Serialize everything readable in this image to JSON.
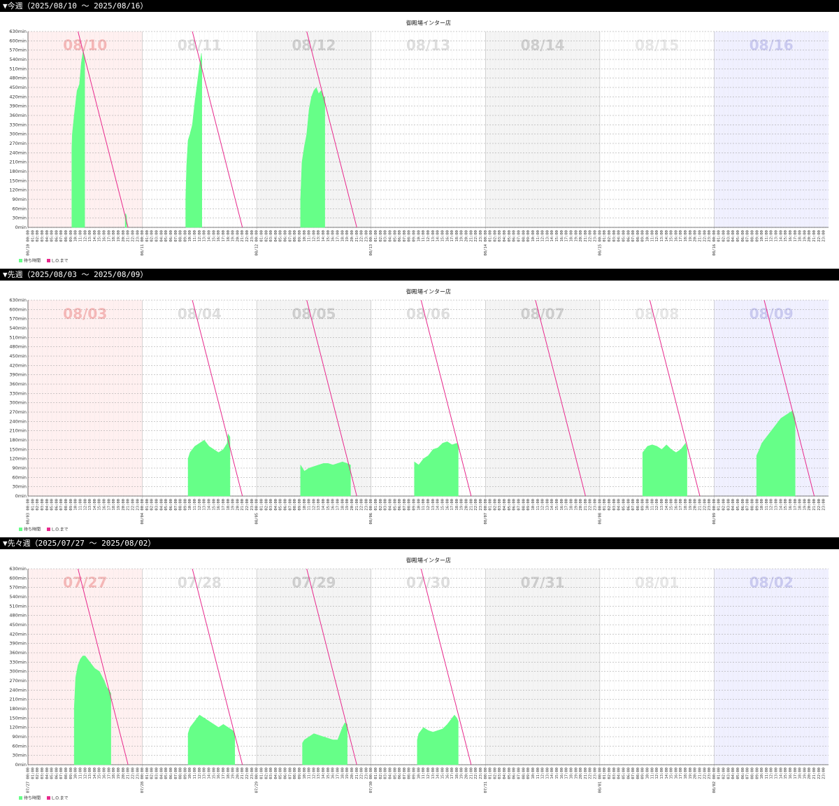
{
  "hour_ticks": [
    {
      "value": 1,
      "label": "01:00"
    },
    {
      "value": 2,
      "label": "02:00"
    },
    {
      "value": 3,
      "label": "03:00"
    },
    {
      "value": 4,
      "label": "04:00"
    },
    {
      "value": 5,
      "label": "05:00"
    },
    {
      "value": 6,
      "label": "06:00"
    },
    {
      "value": 7,
      "label": "07:00"
    },
    {
      "value": 8,
      "label": "08:00"
    },
    {
      "value": 9,
      "label": "09:00"
    },
    {
      "value": 10,
      "label": "10:00"
    },
    {
      "value": 11,
      "label": "11:00"
    },
    {
      "value": 12,
      "label": "12:00"
    },
    {
      "value": 13,
      "label": "13:00"
    },
    {
      "value": 14,
      "label": "14:00"
    },
    {
      "value": 15,
      "label": "15:00"
    },
    {
      "value": 16,
      "label": "16:00"
    },
    {
      "value": 17,
      "label": "17:00"
    },
    {
      "value": 18,
      "label": "18:00"
    },
    {
      "value": 19,
      "label": "19:00"
    },
    {
      "value": 20,
      "label": "20:00"
    },
    {
      "value": 21,
      "label": "21:00"
    },
    {
      "value": 22,
      "label": "22:00"
    },
    {
      "value": 23,
      "label": "23:00"
    }
  ],
  "chart_data": [
    {
      "type": "area",
      "heading": "▼今週（2025/08/10 〜 2025/08/16）",
      "title": "御殿場インター店",
      "xlim": [
        0,
        168
      ],
      "ylim": [
        0,
        630
      ],
      "grid": true,
      "yticks": [
        {
          "value": 0,
          "label": "0min"
        },
        {
          "value": 30,
          "label": "30min"
        },
        {
          "value": 60,
          "label": "60min"
        },
        {
          "value": 90,
          "label": "90min"
        },
        {
          "value": 120,
          "label": "120min"
        },
        {
          "value": 150,
          "label": "150min"
        },
        {
          "value": 180,
          "label": "180min"
        },
        {
          "value": 210,
          "label": "210min"
        },
        {
          "value": 240,
          "label": "240min"
        },
        {
          "value": 270,
          "label": "270min"
        },
        {
          "value": 300,
          "label": "300min"
        },
        {
          "value": 330,
          "label": "330min"
        },
        {
          "value": 360,
          "label": "360min"
        },
        {
          "value": 390,
          "label": "390min"
        },
        {
          "value": 420,
          "label": "420min"
        },
        {
          "value": 450,
          "label": "450min"
        },
        {
          "value": 480,
          "label": "480min"
        },
        {
          "value": 510,
          "label": "510min"
        },
        {
          "value": 540,
          "label": "540min"
        },
        {
          "value": 570,
          "label": "570min"
        },
        {
          "value": 600,
          "label": "600min"
        },
        {
          "value": 630,
          "label": "630min"
        }
      ],
      "xticks": [
        {
          "value": 0,
          "label": "08/10 00:00"
        },
        {
          "value": 24,
          "label": "08/11 00:00"
        },
        {
          "value": 48,
          "label": "08/12 00:00"
        },
        {
          "value": 72,
          "label": "08/13 00:00"
        },
        {
          "value": 96,
          "label": "08/14 00:00"
        },
        {
          "value": 120,
          "label": "08/15 00:00"
        },
        {
          "value": 144,
          "label": "08/16 00:00"
        }
      ],
      "days": [
        {
          "label": "08/10",
          "color": "#fff0f0",
          "label_color": "#f5b5b5"
        },
        {
          "label": "08/11",
          "color": "#ffffff",
          "label_color": "#dddddd"
        },
        {
          "label": "08/12",
          "color": "#f4f4f4",
          "label_color": "#cccccc"
        },
        {
          "label": "08/13",
          "color": "#ffffff",
          "label_color": "#dddddd"
        },
        {
          "label": "08/14",
          "color": "#f4f4f4",
          "label_color": "#cccccc"
        },
        {
          "label": "08/15",
          "color": "#ffffff",
          "label_color": "#e6e6e6"
        },
        {
          "label": "08/16",
          "color": "#f0f0ff",
          "label_color": "#c8c8f0"
        }
      ],
      "series": [
        {
          "name": "待ち時間",
          "type": "area",
          "color": "#66ff88",
          "x": [
            9.2,
            9.3,
            9.7,
            10,
            10.3,
            10.8,
            11.2,
            11.6,
            11.9,
            null,
            20.4,
            20.5,
            20.7,
            null,
            33.1,
            33.3,
            33.6,
            34,
            34.5,
            35,
            35.5,
            36,
            36.4,
            36.5,
            null,
            57.2,
            57.5,
            58,
            58.5,
            59,
            59.5,
            60,
            60.5,
            61,
            61.5,
            62,
            62.3
          ],
          "values": [
            250,
            300,
            360,
            400,
            440,
            460,
            530,
            570,
            540,
            null,
            40,
            45,
            35,
            null,
            90,
            200,
            280,
            300,
            330,
            400,
            460,
            520,
            560,
            540,
            null,
            90,
            210,
            260,
            300,
            380,
            420,
            440,
            450,
            430,
            440,
            420,
            420
          ]
        },
        {
          "name": "L.O.まで",
          "type": "line",
          "color": "#e8288c",
          "x": [
            10.5,
            21,
            null,
            34.5,
            45,
            null,
            58.5,
            69
          ],
          "values": [
            630,
            0,
            null,
            630,
            0,
            null,
            630,
            0
          ]
        }
      ]
    },
    {
      "type": "area",
      "heading": "▼先週（2025/08/03 〜 2025/08/09）",
      "title": "御殿場インター店",
      "xlim": [
        0,
        168
      ],
      "ylim": [
        0,
        630
      ],
      "grid": true,
      "yticks": [
        {
          "value": 0,
          "label": "0min"
        },
        {
          "value": 30,
          "label": "30min"
        },
        {
          "value": 60,
          "label": "60min"
        },
        {
          "value": 90,
          "label": "90min"
        },
        {
          "value": 120,
          "label": "120min"
        },
        {
          "value": 150,
          "label": "150min"
        },
        {
          "value": 180,
          "label": "180min"
        },
        {
          "value": 210,
          "label": "210min"
        },
        {
          "value": 240,
          "label": "240min"
        },
        {
          "value": 270,
          "label": "270min"
        },
        {
          "value": 300,
          "label": "300min"
        },
        {
          "value": 330,
          "label": "330min"
        },
        {
          "value": 360,
          "label": "360min"
        },
        {
          "value": 390,
          "label": "390min"
        },
        {
          "value": 420,
          "label": "420min"
        },
        {
          "value": 450,
          "label": "450min"
        },
        {
          "value": 480,
          "label": "480min"
        },
        {
          "value": 510,
          "label": "510min"
        },
        {
          "value": 540,
          "label": "540min"
        },
        {
          "value": 570,
          "label": "570min"
        },
        {
          "value": 600,
          "label": "600min"
        },
        {
          "value": 630,
          "label": "630min"
        }
      ],
      "xticks": [
        {
          "value": 0,
          "label": "08/03 00:00"
        },
        {
          "value": 24,
          "label": "08/04 00:00"
        },
        {
          "value": 48,
          "label": "08/05 00:00"
        },
        {
          "value": 72,
          "label": "08/06 00:00"
        },
        {
          "value": 96,
          "label": "08/07 00:00"
        },
        {
          "value": 120,
          "label": "08/08 00:00"
        },
        {
          "value": 144,
          "label": "08/09 00:00"
        }
      ],
      "days": [
        {
          "label": "08/03",
          "color": "#fff0f0",
          "label_color": "#f5b5b5"
        },
        {
          "label": "08/04",
          "color": "#ffffff",
          "label_color": "#dddddd"
        },
        {
          "label": "08/05",
          "color": "#f4f4f4",
          "label_color": "#cccccc"
        },
        {
          "label": "08/06",
          "color": "#ffffff",
          "label_color": "#dddddd"
        },
        {
          "label": "08/07",
          "color": "#f4f4f4",
          "label_color": "#cccccc"
        },
        {
          "label": "08/08",
          "color": "#ffffff",
          "label_color": "#e6e6e6"
        },
        {
          "label": "08/09",
          "color": "#f0f0ff",
          "label_color": "#c8c8f0"
        }
      ],
      "series": [
        {
          "name": "待ち時間",
          "type": "area",
          "color": "#66ff88",
          "x": [
            33.6,
            34,
            35,
            36,
            37,
            38,
            39,
            40,
            41,
            41.8,
            42,
            42.4,
            null,
            57.2,
            58,
            59,
            60,
            61,
            62,
            63,
            64,
            65,
            66,
            67,
            67.7,
            null,
            81.1,
            82,
            83,
            84,
            85,
            86,
            87,
            88,
            89,
            90,
            90.3,
            null,
            129,
            130,
            131,
            132,
            133,
            134,
            135,
            136,
            137,
            138,
            138.3,
            null,
            152.9,
            153.5,
            154,
            155,
            156,
            157,
            158,
            159,
            160,
            160.5,
            161
          ],
          "values": [
            120,
            140,
            160,
            170,
            180,
            160,
            150,
            140,
            150,
            170,
            200,
            190,
            null,
            100,
            80,
            90,
            95,
            100,
            105,
            105,
            100,
            105,
            110,
            105,
            100,
            null,
            110,
            100,
            120,
            130,
            150,
            155,
            170,
            175,
            165,
            170,
            160,
            null,
            140,
            160,
            165,
            160,
            150,
            165,
            150,
            140,
            150,
            170,
            150,
            null,
            130,
            150,
            170,
            190,
            210,
            230,
            250,
            260,
            270,
            275,
            250
          ]
        },
        {
          "name": "L.O.まで",
          "type": "line",
          "color": "#e8288c",
          "x": [
            34.5,
            45,
            null,
            58.5,
            69,
            null,
            82.5,
            93,
            null,
            106.5,
            117,
            null,
            130.5,
            141,
            null,
            154.5,
            165
          ],
          "values": [
            630,
            0,
            null,
            630,
            0,
            null,
            630,
            0,
            null,
            630,
            0,
            null,
            630,
            0,
            null,
            630,
            0
          ]
        }
      ]
    },
    {
      "type": "area",
      "heading": "▼先々週（2025/07/27 〜 2025/08/02）",
      "title": "御殿場インター店",
      "xlim": [
        0,
        168
      ],
      "ylim": [
        0,
        630
      ],
      "grid": true,
      "yticks": [
        {
          "value": 0,
          "label": "0min"
        },
        {
          "value": 30,
          "label": "30min"
        },
        {
          "value": 60,
          "label": "60min"
        },
        {
          "value": 90,
          "label": "90min"
        },
        {
          "value": 120,
          "label": "120min"
        },
        {
          "value": 150,
          "label": "150min"
        },
        {
          "value": 180,
          "label": "180min"
        },
        {
          "value": 210,
          "label": "210min"
        },
        {
          "value": 240,
          "label": "240min"
        },
        {
          "value": 270,
          "label": "270min"
        },
        {
          "value": 300,
          "label": "300min"
        },
        {
          "value": 330,
          "label": "330min"
        },
        {
          "value": 360,
          "label": "360min"
        },
        {
          "value": 390,
          "label": "390min"
        },
        {
          "value": 420,
          "label": "420min"
        },
        {
          "value": 450,
          "label": "450min"
        },
        {
          "value": 480,
          "label": "480min"
        },
        {
          "value": 510,
          "label": "510min"
        },
        {
          "value": 540,
          "label": "540min"
        },
        {
          "value": 570,
          "label": "570min"
        },
        {
          "value": 600,
          "label": "600min"
        },
        {
          "value": 630,
          "label": "630min"
        }
      ],
      "xticks": [
        {
          "value": 0,
          "label": "07/27 00:00"
        },
        {
          "value": 24,
          "label": "07/28 00:00"
        },
        {
          "value": 48,
          "label": "07/29 00:00"
        },
        {
          "value": 72,
          "label": "07/30 00:00"
        },
        {
          "value": 96,
          "label": "07/31 00:00"
        },
        {
          "value": 120,
          "label": "08/01 00:00"
        },
        {
          "value": 144,
          "label": "08/02 00:00"
        }
      ],
      "days": [
        {
          "label": "07/27",
          "color": "#fff0f0",
          "label_color": "#f5b5b5"
        },
        {
          "label": "07/28",
          "color": "#ffffff",
          "label_color": "#dddddd"
        },
        {
          "label": "07/29",
          "color": "#f4f4f4",
          "label_color": "#cccccc"
        },
        {
          "label": "07/30",
          "color": "#ffffff",
          "label_color": "#dddddd"
        },
        {
          "label": "07/31",
          "color": "#f4f4f4",
          "label_color": "#cccccc"
        },
        {
          "label": "08/01",
          "color": "#ffffff",
          "label_color": "#e6e6e6"
        },
        {
          "label": "08/02",
          "color": "#f0f0ff",
          "label_color": "#c8c8f0"
        }
      ],
      "series": [
        {
          "name": "待ち時間",
          "type": "area",
          "color": "#66ff88",
          "x": [
            9.7,
            10,
            10.5,
            11,
            11.5,
            12,
            13,
            14,
            15,
            16,
            16.5,
            17,
            17.4,
            null,
            33.6,
            34,
            35,
            36,
            37,
            38,
            39,
            40,
            41,
            42,
            43,
            43.4,
            null,
            57.6,
            58,
            59,
            60,
            61,
            62,
            63,
            64,
            65,
            65.5,
            66,
            66.5,
            67,
            null,
            81.7,
            82,
            83,
            84,
            85,
            86,
            87,
            88,
            89,
            89.5,
            90,
            90.3
          ],
          "values": [
            180,
            280,
            320,
            340,
            350,
            350,
            330,
            310,
            300,
            270,
            250,
            240,
            230,
            null,
            100,
            120,
            140,
            160,
            150,
            140,
            130,
            120,
            130,
            120,
            110,
            100,
            null,
            70,
            80,
            90,
            100,
            95,
            90,
            85,
            80,
            80,
            100,
            120,
            135,
            130,
            null,
            80,
            100,
            120,
            110,
            105,
            110,
            115,
            130,
            150,
            160,
            150,
            140
          ]
        },
        {
          "name": "L.O.まで",
          "type": "line",
          "color": "#e8288c",
          "x": [
            10.5,
            21,
            null,
            34.5,
            45,
            null,
            58.5,
            69,
            null,
            82.5,
            93
          ],
          "values": [
            630,
            0,
            null,
            630,
            0,
            null,
            630,
            0,
            null,
            630,
            0
          ]
        }
      ]
    }
  ]
}
